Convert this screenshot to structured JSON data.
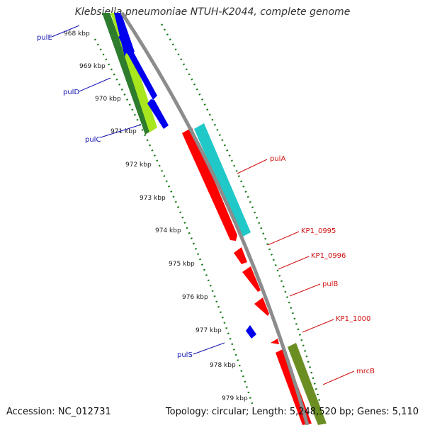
{
  "title": "Klebsiella pneumoniae NTUH-K2044, complete genome",
  "footer": {
    "accession": "Accession: NC_012731",
    "topology": "Topology: circular; Length: 5,248,520 bp; Genes: 5,110"
  },
  "colors": {
    "backbone": "#8c8c8c",
    "tick": "#1a7a1a",
    "forward_label": "#d01010",
    "reverse_label": "#1010b0",
    "forward_gene": "#ff0000",
    "reverse_gene": "#0000ee",
    "cyan_track": "#20c8c8",
    "green_track": "#2e7d2e",
    "lime_track": "#a8e61e",
    "olive_track": "#6b8e23"
  },
  "scale_labels": [
    "968 kbp",
    "969 kbp",
    "970 kbp",
    "971 kbp",
    "972 kbp",
    "973 kbp",
    "974 kbp",
    "975 kbp",
    "976 kbp",
    "977 kbp",
    "978 kbp",
    "979 kbp"
  ],
  "gene_labels": {
    "pulE": "pulE",
    "pulD": "pulD",
    "pulC": "pulC",
    "pulS": "pulS",
    "pulA": "pulA",
    "KP1_0995": "KP1_0995",
    "KP1_0996": "KP1_0996",
    "pulB": "pulB",
    "KP1_1000": "KP1_1000",
    "mrcB": "mrcB"
  }
}
